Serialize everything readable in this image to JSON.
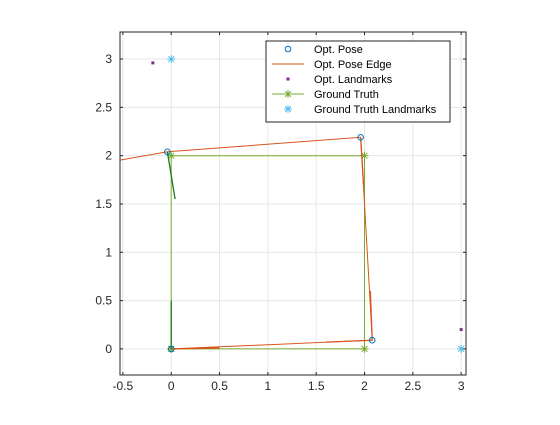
{
  "chart_data": {
    "type": "scatter",
    "title": "",
    "xlabel": "",
    "ylabel": "",
    "xlim": [
      -0.53,
      3.05
    ],
    "ylim": [
      -0.27,
      3.28
    ],
    "xticks": [
      -0.5,
      0,
      0.5,
      1,
      1.5,
      2,
      2.5,
      3
    ],
    "xtick_labels": [
      "-0.5",
      "0",
      "0.5",
      "1",
      "1.5",
      "2",
      "2.5",
      "3"
    ],
    "yticks": [
      0,
      0.5,
      1,
      1.5,
      2,
      2.5,
      3
    ],
    "ytick_labels": [
      "0",
      "0.5",
      "1",
      "1.5",
      "2",
      "2.5",
      "3"
    ],
    "grid": true,
    "legend_position": "top-right",
    "legend": [
      "Opt. Pose",
      "Opt. Pose Edge",
      "Opt. Landmarks",
      "Ground Truth",
      "Ground Truth Landmarks"
    ],
    "colors": {
      "opt_pose": "#0072bd",
      "opt_edge": "#d95319",
      "opt_landmarks": "#7e2f8e",
      "ground_truth": "#77ac30",
      "gt_landmarks": "#4dbeee",
      "heading_segment": "#1a7a1a",
      "grid": "#e6e6e6",
      "axis": "#262626"
    },
    "series": [
      {
        "name": "Opt. Pose",
        "kind": "marker-circle",
        "points": [
          [
            0,
            0
          ],
          [
            2.08,
            0.09
          ],
          [
            1.96,
            2.19
          ],
          [
            -0.04,
            2.04
          ]
        ]
      },
      {
        "name": "Opt. Pose Edge",
        "kind": "line",
        "points": [
          [
            0,
            0
          ],
          [
            2.08,
            0.09
          ],
          [
            1.96,
            2.19
          ],
          [
            -0.04,
            2.04
          ],
          [
            -0.55,
            1.95
          ]
        ]
      },
      {
        "name": "Opt. Landmarks",
        "kind": "marker-dot",
        "points": [
          [
            -0.19,
            2.96
          ],
          [
            3.0,
            0.2
          ]
        ]
      },
      {
        "name": "Ground Truth",
        "kind": "line-asterisk",
        "points": [
          [
            0,
            0
          ],
          [
            2,
            0
          ],
          [
            2,
            2
          ],
          [
            0,
            2
          ],
          [
            0,
            0
          ]
        ]
      },
      {
        "name": "Ground Truth Landmarks",
        "kind": "marker-asterisk",
        "points": [
          [
            0,
            3
          ],
          [
            3,
            0
          ]
        ]
      }
    ],
    "heading_segments": [
      {
        "color": "opt_edge",
        "from": [
          2.08,
          0.09
        ],
        "to": [
          2.06,
          0.6
        ]
      },
      {
        "color": "opt_edge",
        "from": [
          1.96,
          2.19
        ],
        "to": [
          1.99,
          1.7
        ]
      },
      {
        "color": "opt_edge",
        "from": [
          0,
          0
        ],
        "to": [
          0.5,
          0.01
        ]
      },
      {
        "color": "opt_edge",
        "from": [
          1.6,
          0.07
        ],
        "to": [
          2.08,
          0.09
        ]
      },
      {
        "color": "heading_segment",
        "from": [
          -0.04,
          2.04
        ],
        "to": [
          0.04,
          1.55
        ]
      },
      {
        "color": "heading_segment",
        "from": [
          0,
          0
        ],
        "to": [
          0,
          0.5
        ]
      }
    ]
  }
}
